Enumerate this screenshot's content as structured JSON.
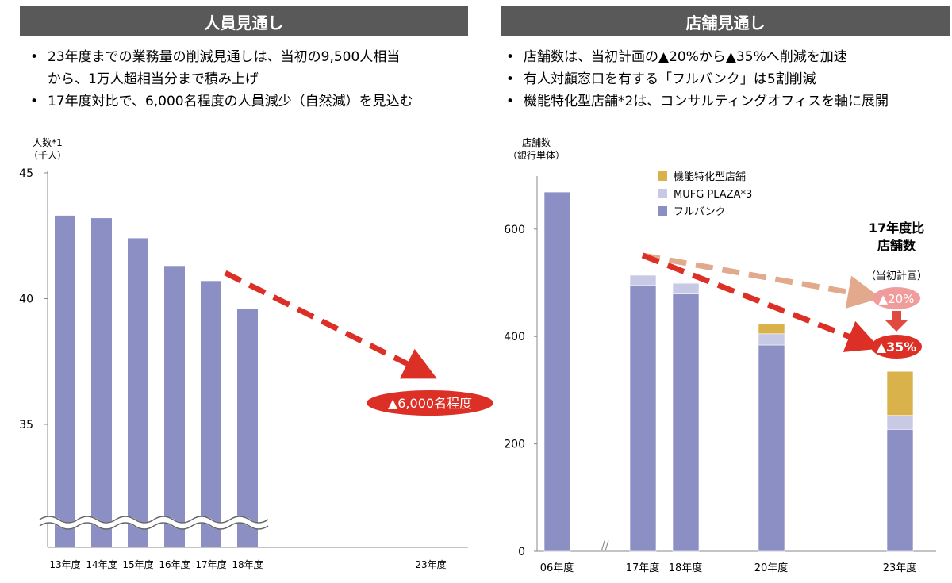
{
  "left": {
    "title": "人員見通し",
    "bullets": [
      "23年度までの業務量の削減見通しは、当初の9,500人相当",
      "から、1万人超相当分まで積み上げ",
      "17年度対比で、6,000名程度の人員減少（自然減）を見込む"
    ],
    "callout": "▲6,000名程度"
  },
  "right": {
    "title": "店舗見通し",
    "bullets": [
      "店舗数は、当初計画の▲20%から▲35%へ削減を加速",
      "有人対顧窓口を有する「フルバンク」は5割削減",
      "機能特化型店舗*2は、コンサルティングオフィスを軸に展開"
    ],
    "side_title_1": "17年度比",
    "side_title_2": "店舗数",
    "plan_label": "（当初計画）",
    "plan_badge": "▲20%",
    "new_badge": "▲35%"
  },
  "chart_data": [
    {
      "type": "bar",
      "ylabel": "人数*1",
      "yunit": "（千人）",
      "ylim": [
        31,
        45
      ],
      "yticks": [
        35,
        40,
        45
      ],
      "axis_break": true,
      "categories": [
        "13年度",
        "14年度",
        "15年度",
        "16年度",
        "17年度",
        "18年度",
        "23年度"
      ],
      "values": [
        43.3,
        43.2,
        42.4,
        41.3,
        40.7,
        39.6,
        null
      ],
      "color": "#8b8fc4"
    },
    {
      "type": "bar",
      "stacked": true,
      "ylabel": "店舗数",
      "yunit": "（銀行単体）",
      "ylim": [
        0,
        700
      ],
      "yticks": [
        0,
        200,
        400,
        600
      ],
      "legend": "top-center",
      "categories": [
        "06年度",
        "17年度",
        "18年度",
        "20年度",
        "23年度"
      ],
      "series": [
        {
          "name": "フルバンク",
          "color": "#8b8fc4",
          "values": [
            669,
            495,
            479,
            384,
            227
          ]
        },
        {
          "name": "MUFG PLAZA*3",
          "color": "#c8c9e4",
          "values": [
            0,
            19,
            20,
            21,
            26
          ]
        },
        {
          "name": "機能特化型店舗",
          "color": "#d9b24c",
          "values": [
            0,
            0,
            1,
            19,
            82
          ]
        }
      ]
    }
  ]
}
